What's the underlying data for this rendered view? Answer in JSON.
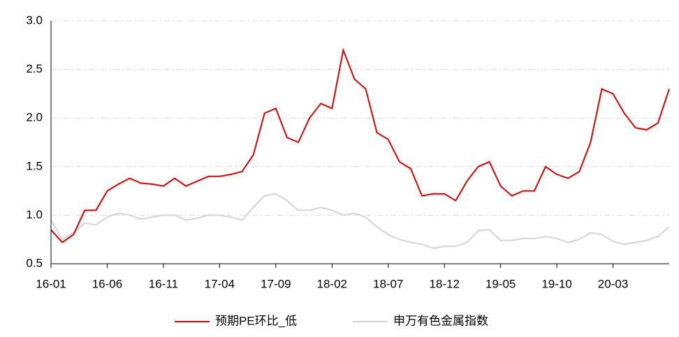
{
  "chart_data": {
    "type": "line",
    "categories": [
      "16-01",
      null,
      null,
      null,
      null,
      "16-06",
      null,
      null,
      null,
      null,
      "16-11",
      null,
      null,
      null,
      null,
      "17-04",
      null,
      null,
      null,
      null,
      "17-09",
      null,
      null,
      null,
      null,
      "18-02",
      null,
      null,
      null,
      null,
      "18-07",
      null,
      null,
      null,
      null,
      "18-12",
      null,
      null,
      null,
      null,
      "19-05",
      null,
      null,
      null,
      null,
      "19-10",
      null,
      null,
      null,
      null,
      "20-03",
      null,
      null,
      null,
      null,
      null
    ],
    "series": [
      {
        "name": "预期PE环比_低",
        "color": "#e00000",
        "values": [
          0.85,
          0.72,
          0.8,
          1.05,
          1.05,
          1.25,
          1.32,
          1.38,
          1.33,
          1.32,
          1.3,
          1.38,
          1.3,
          1.35,
          1.4,
          1.4,
          1.42,
          1.45,
          1.62,
          2.05,
          2.1,
          1.8,
          1.75,
          2.0,
          2.15,
          2.1,
          2.7,
          2.4,
          2.3,
          1.85,
          1.78,
          1.55,
          1.48,
          1.2,
          1.22,
          1.22,
          1.15,
          1.35,
          1.5,
          1.55,
          1.3,
          1.2,
          1.25,
          1.25,
          1.5,
          1.42,
          1.38,
          1.45,
          1.75,
          2.3,
          2.25,
          2.05,
          1.9,
          1.88,
          1.95,
          2.3
        ]
      },
      {
        "name": "申万有色金属指数",
        "color": "#d3d3d3",
        "values": [
          0.95,
          0.75,
          0.82,
          0.92,
          0.9,
          0.98,
          1.02,
          1.0,
          0.96,
          0.98,
          1.0,
          1.0,
          0.95,
          0.97,
          1.0,
          1.0,
          0.98,
          0.95,
          1.08,
          1.2,
          1.22,
          1.15,
          1.05,
          1.05,
          1.08,
          1.05,
          1.0,
          1.02,
          0.98,
          0.88,
          0.8,
          0.75,
          0.72,
          0.7,
          0.66,
          0.68,
          0.68,
          0.72,
          0.84,
          0.85,
          0.74,
          0.74,
          0.76,
          0.76,
          0.78,
          0.76,
          0.72,
          0.75,
          0.82,
          0.8,
          0.73,
          0.7,
          0.72,
          0.74,
          0.78,
          0.88
        ]
      }
    ],
    "ylim": [
      0.5,
      3.0
    ],
    "yticks": [
      0.5,
      {
        "value": 1.0,
        "label": "1.0"
      },
      1.5,
      {
        "value": 2.0,
        "label": "2.0"
      },
      2.5,
      {
        "value": 3.0,
        "label": "3.0"
      }
    ],
    "grid": true,
    "legend": "bottom"
  }
}
